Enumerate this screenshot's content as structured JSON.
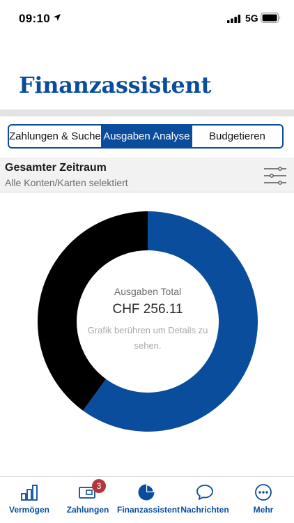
{
  "status_bar": {
    "time": "09:10",
    "network": "5G"
  },
  "header": {
    "title": "Finanzassistent"
  },
  "segments": [
    {
      "label": "Zahlungen & Suche",
      "active": false
    },
    {
      "label": "Ausgaben Analyse",
      "active": true
    },
    {
      "label": "Budgetieren",
      "active": false
    }
  ],
  "filter": {
    "title": "Gesamter Zeitraum",
    "subtitle": "Alle Konten/Karten selektiert"
  },
  "chart_data": {
    "type": "pie",
    "variant": "donut",
    "center_label": "Ausgaben Total",
    "center_value": "CHF 256.11",
    "hint": "Grafik berühren um Details zu sehen.",
    "slices": [
      {
        "value": 0.6,
        "color": "#0a4d9c"
      },
      {
        "value": 0.4,
        "color": "#000000"
      }
    ]
  },
  "tab_bar": {
    "items": [
      {
        "label": "Vermögen",
        "icon": "bar-chart-icon"
      },
      {
        "label": "Zahlungen",
        "icon": "payments-icon",
        "badge": "3"
      },
      {
        "label": "Finanzassistent",
        "icon": "pie-chart-icon"
      },
      {
        "label": "Nachrichten",
        "icon": "chat-bubble-icon"
      },
      {
        "label": "Mehr",
        "icon": "more-icon"
      }
    ]
  },
  "colors": {
    "brand": "#0a4d9c",
    "badge": "#b3363f",
    "band": "#e3e3e3"
  }
}
